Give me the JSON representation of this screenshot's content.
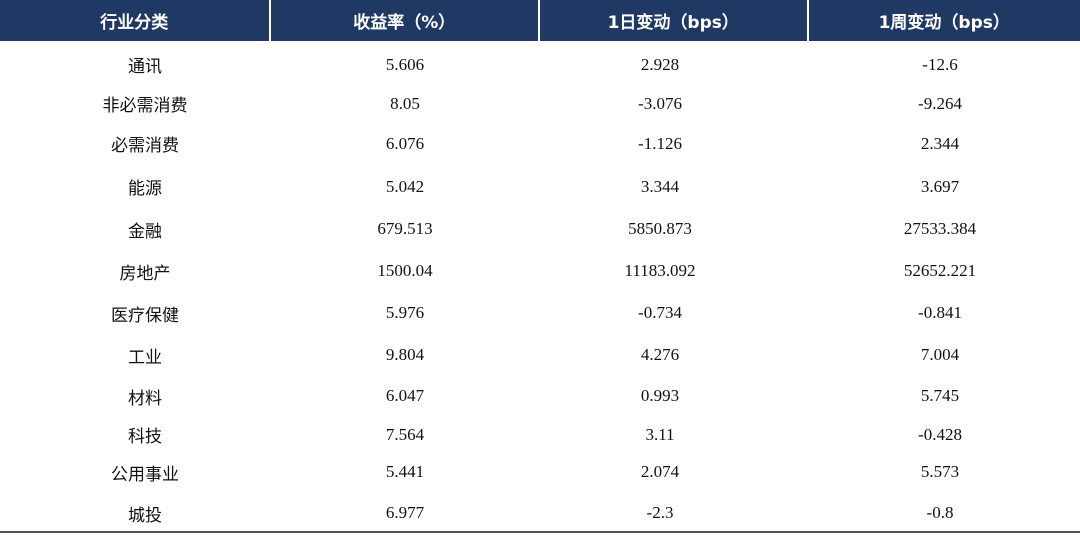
{
  "table": {
    "headers": [
      "行业分类",
      "收益率（%）",
      "1日变动（bps）",
      "1周变动（bps）"
    ],
    "rows": [
      [
        "通讯",
        "5.606",
        "2.928",
        "-12.6"
      ],
      [
        "非必需消费",
        "8.05",
        "-3.076",
        "-9.264"
      ],
      [
        "必需消费",
        "6.076",
        "-1.126",
        "2.344"
      ],
      [
        "能源",
        "5.042",
        "3.344",
        "3.697"
      ],
      [
        "金融",
        "679.513",
        "5850.873",
        "27533.384"
      ],
      [
        "房地产",
        "1500.04",
        "11183.092",
        "52652.221"
      ],
      [
        "医疗保健",
        "5.976",
        "-0.734",
        "-0.841"
      ],
      [
        "工业",
        "9.804",
        "4.276",
        "7.004"
      ],
      [
        "材料",
        "6.047",
        "0.993",
        "5.745"
      ],
      [
        "科技",
        "7.564",
        "3.11",
        "-0.428"
      ],
      [
        "公用事业",
        "5.441",
        "2.074",
        "5.573"
      ],
      [
        "城投",
        "6.977",
        "-2.3",
        "-0.8"
      ]
    ],
    "header_bg": "#1f3864",
    "header_text_color": "#ffffff"
  }
}
